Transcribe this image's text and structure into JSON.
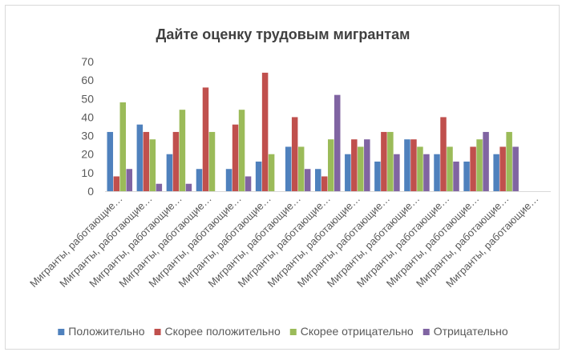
{
  "chart_data": {
    "type": "bar",
    "title": "Дайте оценку трудовым мигрантам",
    "xlabel": "",
    "ylabel": "",
    "ylim": [
      0,
      70
    ],
    "yticks": [
      0,
      10,
      20,
      30,
      40,
      50,
      60,
      70
    ],
    "grid": false,
    "legend_position": "bottom",
    "categories": [
      "Мигранты, работающие…",
      "Мигранты, работающие…",
      "Мигранты, работающие…",
      "Мигранты, работающие…",
      "Мигранты, работающие…",
      "Мигранты, работающие…",
      "Мигранты, работающие…",
      "Мигранты, работающие…",
      "Мигранты, работающие…",
      "Мигранты, работающие…",
      "Мигранты, работающие…",
      "Мигранты, работающие…",
      "Мигранты, работающие…",
      "Мигранты, работающие…",
      "Мигранты, работающие…"
    ],
    "series": [
      {
        "name": "Положительно",
        "color": "#4f81bd",
        "values": [
          32,
          36,
          20,
          12,
          12,
          16,
          24,
          12,
          20,
          16,
          28,
          20,
          16,
          20,
          0
        ]
      },
      {
        "name": "Скорее положительно",
        "color": "#c0504d",
        "values": [
          8,
          32,
          32,
          56,
          36,
          64,
          40,
          8,
          28,
          32,
          28,
          40,
          24,
          24,
          0
        ]
      },
      {
        "name": "Скорее отрицательно",
        "color": "#9bbb59",
        "values": [
          48,
          28,
          44,
          32,
          44,
          20,
          24,
          28,
          24,
          32,
          24,
          24,
          28,
          32,
          0
        ]
      },
      {
        "name": "Отрицательно",
        "color": "#8064a2",
        "values": [
          12,
          4,
          4,
          0,
          8,
          0,
          12,
          52,
          28,
          20,
          20,
          16,
          32,
          24,
          0
        ]
      }
    ]
  }
}
